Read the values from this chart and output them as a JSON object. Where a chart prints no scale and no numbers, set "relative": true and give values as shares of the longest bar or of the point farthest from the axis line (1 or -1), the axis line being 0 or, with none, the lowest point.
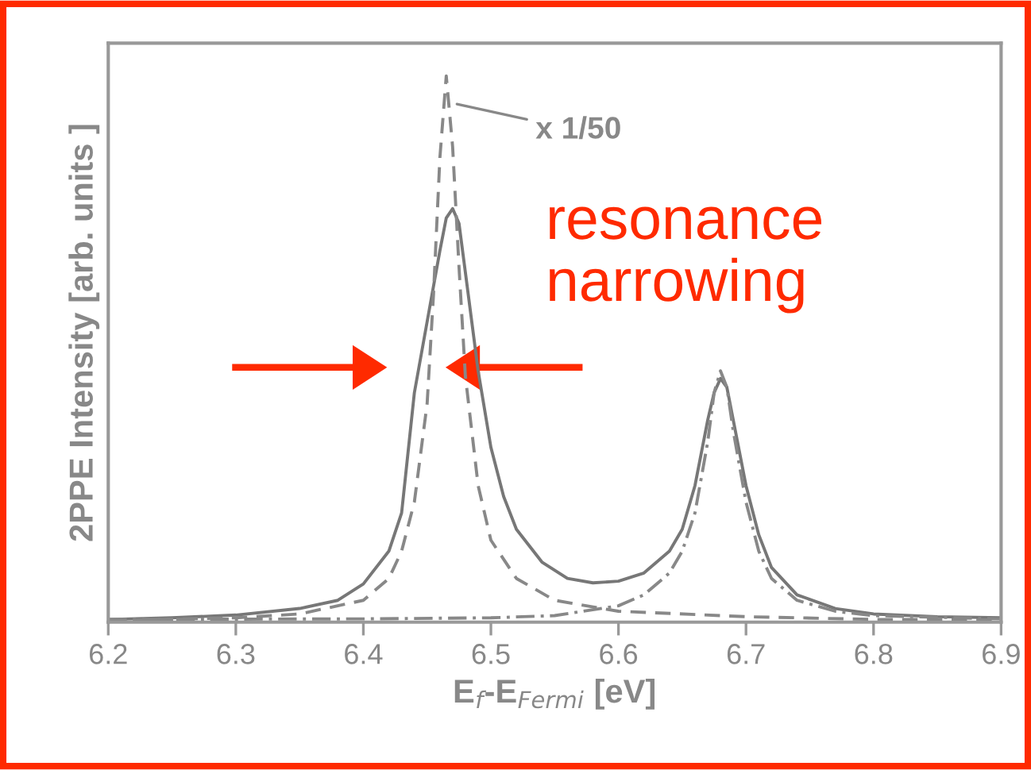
{
  "chart_data": {
    "type": "line",
    "relative": true,
    "xlabel": "E$_{f}$-E$_{Fermi}$ [eV]",
    "ylabel": "2PPE Intensity [arb. units ]",
    "xlim": [
      6.2,
      6.9
    ],
    "xticks": [
      6.2,
      6.3,
      6.4,
      6.5,
      6.6,
      6.7,
      6.8,
      6.9
    ],
    "grid": false,
    "legend": false,
    "marker": "none",
    "series": [
      {
        "color": "#777777",
        "line_style": "solid",
        "x": [
          6.2,
          6.25,
          6.3,
          6.35,
          6.38,
          6.4,
          6.42,
          6.43,
          6.44,
          6.45,
          6.46,
          6.465,
          6.47,
          6.475,
          6.48,
          6.49,
          6.5,
          6.51,
          6.52,
          6.54,
          6.56,
          6.58,
          6.6,
          6.62,
          6.64,
          6.65,
          6.66,
          6.67,
          6.675,
          6.68,
          6.685,
          6.69,
          6.7,
          6.71,
          6.72,
          6.74,
          6.77,
          6.8,
          6.85,
          6.9
        ],
        "values": [
          0.005,
          0.008,
          0.013,
          0.025,
          0.04,
          0.07,
          0.13,
          0.2,
          0.42,
          0.55,
          0.68,
          0.74,
          0.757,
          0.73,
          0.64,
          0.46,
          0.32,
          0.23,
          0.17,
          0.11,
          0.08,
          0.072,
          0.075,
          0.09,
          0.13,
          0.17,
          0.25,
          0.37,
          0.42,
          0.446,
          0.43,
          0.37,
          0.25,
          0.16,
          0.1,
          0.05,
          0.025,
          0.015,
          0.01,
          0.008
        ]
      },
      {
        "color": "#888888",
        "line_style": "dashed",
        "x": [
          6.2,
          6.3,
          6.35,
          6.4,
          6.42,
          6.43,
          6.44,
          6.45,
          6.455,
          6.46,
          6.465,
          6.47,
          6.475,
          6.48,
          6.49,
          6.5,
          6.52,
          6.55,
          6.6,
          6.7,
          6.8,
          6.9
        ],
        "values": [
          0.003,
          0.008,
          0.015,
          0.04,
          0.08,
          0.13,
          0.22,
          0.4,
          0.6,
          0.85,
          1.0,
          0.87,
          0.65,
          0.45,
          0.25,
          0.15,
          0.08,
          0.04,
          0.02,
          0.01,
          0.005,
          0.004
        ]
      },
      {
        "color": "#888888",
        "line_style": "dashdot",
        "x": [
          6.2,
          6.4,
          6.5,
          6.55,
          6.6,
          6.62,
          6.64,
          6.65,
          6.66,
          6.67,
          6.675,
          6.68,
          6.685,
          6.69,
          6.7,
          6.71,
          6.72,
          6.74,
          6.77,
          6.8,
          6.9
        ],
        "values": [
          0.005,
          0.006,
          0.008,
          0.012,
          0.03,
          0.05,
          0.09,
          0.13,
          0.2,
          0.33,
          0.42,
          0.46,
          0.43,
          0.35,
          0.22,
          0.13,
          0.08,
          0.04,
          0.02,
          0.012,
          0.006
        ]
      }
    ],
    "annotations": [
      {
        "text": "x 1/50",
        "x": 6.47,
        "y": 0.95
      },
      "resonance narrowing"
    ]
  }
}
